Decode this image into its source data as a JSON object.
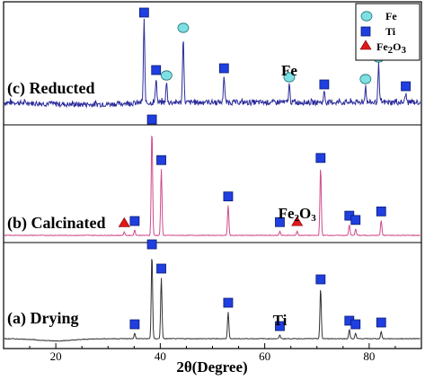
{
  "chart_data": {
    "type": "line",
    "xlabel": "2θ(Degree)",
    "xlim": [
      10,
      90
    ],
    "x_ticks": [
      20,
      40,
      60,
      80
    ],
    "grid": false,
    "legend_position": "top-right",
    "legend": [
      {
        "marker": "circle",
        "label": "Fe",
        "color": "#7fe0e4"
      },
      {
        "marker": "square",
        "label": "Ti",
        "color": "#1f3fe0"
      },
      {
        "marker": "triangle",
        "label": "Fe2O3",
        "color": "#e01818"
      }
    ],
    "panels": [
      {
        "name": "(c) Reducted",
        "color": "#2c2c9c",
        "noise": "high",
        "peaks": [
          {
            "x": 36.9,
            "h": 0.92,
            "phase": "Ti"
          },
          {
            "x": 39.2,
            "h": 0.28,
            "phase": "Ti"
          },
          {
            "x": 41.2,
            "h": 0.22,
            "phase": "Fe"
          },
          {
            "x": 44.4,
            "h": 0.75,
            "phase": "Fe"
          },
          {
            "x": 52.2,
            "h": 0.3,
            "phase": "Ti"
          },
          {
            "x": 64.7,
            "h": 0.2,
            "phase": "Fe"
          },
          {
            "x": 71.4,
            "h": 0.12,
            "phase": "Ti"
          },
          {
            "x": 79.3,
            "h": 0.18,
            "phase": "Fe"
          },
          {
            "x": 81.8,
            "h": 0.42,
            "phase": "Fe"
          },
          {
            "x": 87.0,
            "h": 0.1,
            "phase": "Ti"
          }
        ],
        "annotations": [
          {
            "text": "Fe",
            "x": 64.7
          }
        ]
      },
      {
        "name": "(b) Calcinated",
        "color": "#d04a8a",
        "noise": "low",
        "peaks": [
          {
            "x": 33.1,
            "h": 0.03,
            "phase": "Fe2O3"
          },
          {
            "x": 35.1,
            "h": 0.05,
            "phase": "Ti"
          },
          {
            "x": 38.4,
            "h": 1.0,
            "phase": "Ti"
          },
          {
            "x": 40.2,
            "h": 0.62,
            "phase": "Ti"
          },
          {
            "x": 53.0,
            "h": 0.28,
            "phase": "Ti"
          },
          {
            "x": 62.9,
            "h": 0.04,
            "phase": "Ti"
          },
          {
            "x": 66.2,
            "h": 0.04,
            "phase": "Fe2O3"
          },
          {
            "x": 70.7,
            "h": 0.64,
            "phase": "Ti"
          },
          {
            "x": 76.2,
            "h": 0.1,
            "phase": "Ti"
          },
          {
            "x": 77.4,
            "h": 0.06,
            "phase": "Ti"
          },
          {
            "x": 82.3,
            "h": 0.14,
            "phase": "Ti"
          }
        ],
        "annotations": [
          {
            "text": "Fe2O3",
            "x": 66.2
          }
        ]
      },
      {
        "name": "(a) Drying",
        "color": "#333333",
        "noise": "low",
        "peaks": [
          {
            "x": 35.1,
            "h": 0.06,
            "phase": "Ti"
          },
          {
            "x": 38.4,
            "h": 0.95,
            "phase": "Ti"
          },
          {
            "x": 40.2,
            "h": 0.68,
            "phase": "Ti"
          },
          {
            "x": 53.0,
            "h": 0.3,
            "phase": "Ti"
          },
          {
            "x": 62.9,
            "h": 0.04,
            "phase": "Ti"
          },
          {
            "x": 70.7,
            "h": 0.56,
            "phase": "Ti"
          },
          {
            "x": 76.2,
            "h": 0.1,
            "phase": "Ti"
          },
          {
            "x": 77.4,
            "h": 0.06,
            "phase": "Ti"
          },
          {
            "x": 82.3,
            "h": 0.08,
            "phase": "Ti"
          }
        ],
        "annotations": [
          {
            "text": "Ti",
            "x": 62.9
          }
        ]
      }
    ]
  }
}
